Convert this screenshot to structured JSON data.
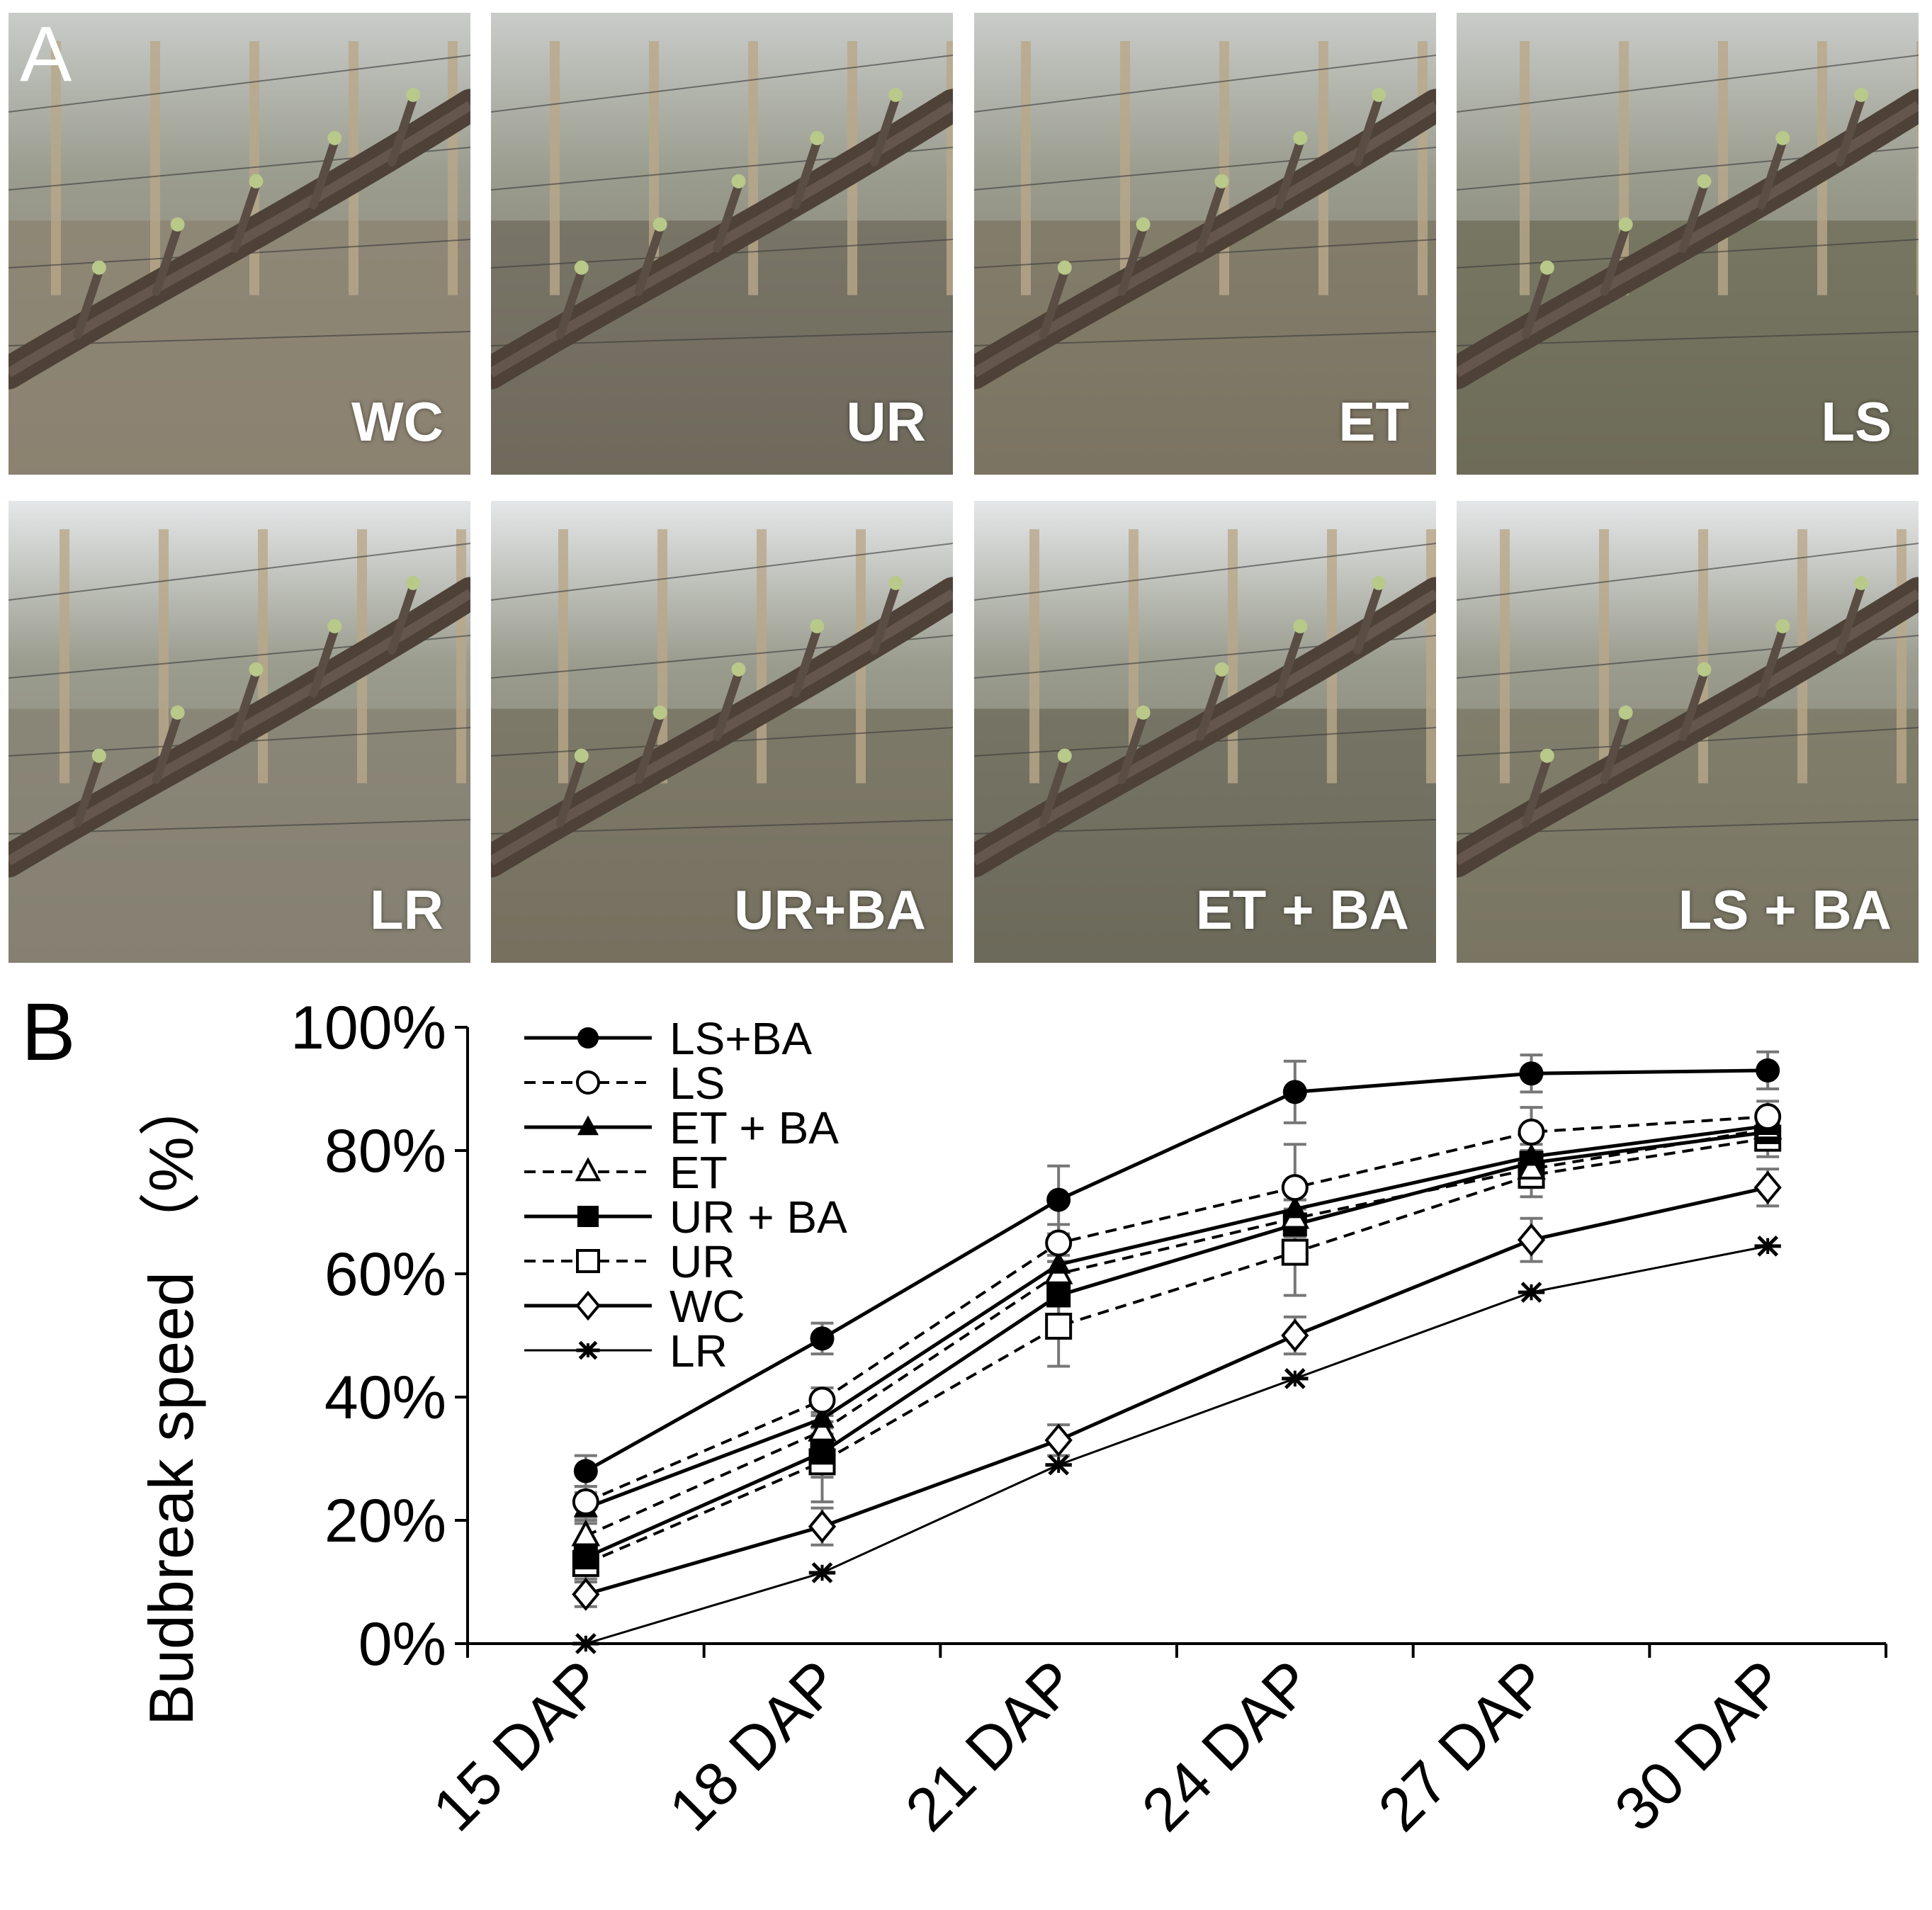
{
  "figure": {
    "panel_a_label": "A",
    "panel_b_label": "B"
  },
  "photos": [
    {
      "label": "WC",
      "tint": "#8b8170"
    },
    {
      "label": "UR",
      "tint": "#6f6a5c"
    },
    {
      "label": "ET",
      "tint": "#7c7462"
    },
    {
      "label": "LS",
      "tint": "#6e6c58"
    },
    {
      "label": "LR",
      "tint": "#858072"
    },
    {
      "label": "UR+BA",
      "tint": "#76705f"
    },
    {
      "label": "ET + BA",
      "tint": "#6c6a5a"
    },
    {
      "label": "LS + BA",
      "tint": "#7a7563"
    }
  ],
  "chart_data": {
    "type": "line",
    "title": "",
    "xlabel": "",
    "ylabel": "Budbreak speed （%）",
    "categories": [
      "15 DAP",
      "18 DAP",
      "21 DAP",
      "24 DAP",
      "27 DAP",
      "30 DAP"
    ],
    "ylim": [
      0,
      100
    ],
    "yticks": [
      "0%",
      "20%",
      "40%",
      "60%",
      "80%",
      "100%"
    ],
    "grid": false,
    "legend_position": "top-left",
    "series": [
      {
        "name": "LS+BA",
        "marker": "circle-filled",
        "dash": "solid",
        "values": [
          28,
          49.5,
          72,
          89.5,
          92.5,
          93
        ],
        "errors": [
          2.5,
          2.5,
          5.5,
          5,
          3,
          3
        ]
      },
      {
        "name": "LS",
        "marker": "circle-open",
        "dash": "dashed",
        "values": [
          23,
          39.5,
          65,
          74,
          83,
          85.5
        ],
        "errors": [
          2.5,
          2,
          3,
          7,
          4,
          2.5
        ]
      },
      {
        "name": "ET + BA",
        "marker": "triangle-filled",
        "dash": "solid",
        "values": [
          22,
          36.5,
          61.5,
          70.5,
          79,
          84
        ],
        "errors": [
          2.5,
          2.5,
          3,
          3,
          3,
          2.5
        ]
      },
      {
        "name": "ET",
        "marker": "triangle-open",
        "dash": "dashed",
        "values": [
          17.5,
          34.5,
          60,
          69,
          77,
          83.5
        ],
        "errors": [
          2.5,
          2.5,
          3,
          3,
          3,
          2.5
        ]
      },
      {
        "name": "UR + BA",
        "marker": "square-filled",
        "dash": "solid",
        "values": [
          14,
          31,
          56.5,
          68,
          78,
          83
        ],
        "errors": [
          2.5,
          4,
          5.5,
          4,
          3,
          2.5
        ]
      },
      {
        "name": "UR",
        "marker": "square-open",
        "dash": "dashed",
        "values": [
          13,
          29.5,
          51.5,
          63.5,
          76,
          82
        ],
        "errors": [
          2.5,
          6.5,
          6.5,
          7,
          3.5,
          3
        ]
      },
      {
        "name": "WC",
        "marker": "diamond-open",
        "dash": "solid",
        "values": [
          8,
          19,
          33,
          50,
          65.5,
          74
        ],
        "errors": [
          2,
          3,
          2.5,
          3,
          3.5,
          3
        ]
      },
      {
        "name": "LR",
        "marker": "asterisk",
        "dash": "thin",
        "values": [
          0,
          11.5,
          29,
          43,
          57,
          64.5
        ],
        "errors": [
          0,
          0,
          0,
          0,
          0,
          0
        ]
      }
    ]
  }
}
